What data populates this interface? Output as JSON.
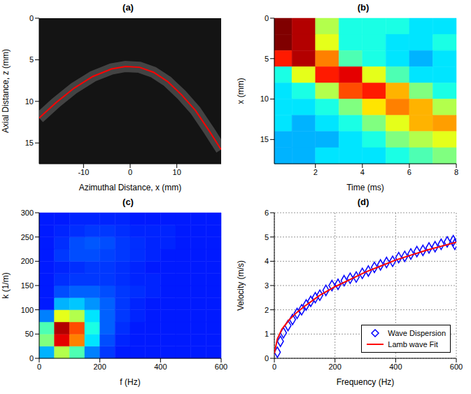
{
  "chart_data": [
    {
      "type": "line",
      "title": "(a)",
      "x_label": "Azimuthal Distance, x (mm)",
      "y_label": "Axial Distance, z (mm)",
      "x": [
        -19.5,
        -16,
        -12,
        -8,
        -4,
        -1,
        2,
        5,
        8,
        11,
        14,
        17,
        19.5
      ],
      "values": [
        12.0,
        10.2,
        8.4,
        7.0,
        6.1,
        5.8,
        5.9,
        6.5,
        7.6,
        9.2,
        11.1,
        13.6,
        15.8
      ],
      "color": "#ff0000",
      "xlim": [
        -19.5,
        19.5
      ],
      "xticks": [
        -10,
        0,
        10
      ],
      "ylim": [
        0,
        17.5
      ],
      "yticks": [
        0,
        5,
        10,
        15
      ]
    },
    {
      "type": "heatmap",
      "title": "(b)",
      "x_label": "Time (ms)",
      "y_label": "x (mm)",
      "x_edges": [
        0.25,
        1,
        2,
        3,
        4,
        5,
        6,
        7,
        8
      ],
      "y_edges": [
        0,
        2,
        4,
        6,
        8,
        10,
        12,
        14,
        16,
        18
      ],
      "cells": [
        [
          1.0,
          0.95,
          0.55,
          0.4,
          0.4,
          0.4,
          0.35,
          0.35
        ],
        [
          1.0,
          0.95,
          0.6,
          0.4,
          0.4,
          0.35,
          0.35,
          0.4
        ],
        [
          0.85,
          0.95,
          0.75,
          0.45,
          0.4,
          0.35,
          0.3,
          0.35
        ],
        [
          0.4,
          0.6,
          0.85,
          0.9,
          0.6,
          0.45,
          0.35,
          0.35
        ],
        [
          0.35,
          0.4,
          0.55,
          0.8,
          0.85,
          0.7,
          0.5,
          0.4
        ],
        [
          0.35,
          0.35,
          0.4,
          0.5,
          0.65,
          0.75,
          0.7,
          0.55
        ],
        [
          0.35,
          0.3,
          0.35,
          0.4,
          0.5,
          0.6,
          0.7,
          0.72
        ],
        [
          0.3,
          0.3,
          0.3,
          0.35,
          0.4,
          0.5,
          0.55,
          0.6
        ],
        [
          0.3,
          0.3,
          0.35,
          0.35,
          0.35,
          0.4,
          0.45,
          0.5
        ]
      ],
      "color_range": [
        0,
        1
      ],
      "xlim": [
        0.25,
        8
      ],
      "xticks": [
        2,
        4,
        6,
        8
      ],
      "ylim": [
        0,
        18
      ],
      "yticks": [
        0,
        5,
        10,
        15
      ]
    },
    {
      "type": "heatmap",
      "title": "(c)",
      "x_label": "f (Hz)",
      "y_label": "k (1/m)",
      "x_edges": [
        0,
        50,
        100,
        150,
        200,
        250,
        300,
        350,
        400,
        450,
        500,
        550,
        600
      ],
      "y_edges": [
        0,
        25,
        50,
        75,
        100,
        125,
        150,
        175,
        200,
        225,
        250,
        275,
        300
      ],
      "cells": [
        [
          0.3,
          0.55,
          0.45,
          0.25,
          0.18,
          0.15,
          0.15,
          0.15,
          0.15,
          0.15,
          0.15,
          0.15
        ],
        [
          0.5,
          0.9,
          0.75,
          0.35,
          0.2,
          0.16,
          0.15,
          0.15,
          0.15,
          0.15,
          0.15,
          0.15
        ],
        [
          0.45,
          0.95,
          0.8,
          0.4,
          0.22,
          0.17,
          0.15,
          0.15,
          0.15,
          0.15,
          0.15,
          0.15
        ],
        [
          0.25,
          0.6,
          0.55,
          0.35,
          0.22,
          0.18,
          0.16,
          0.15,
          0.15,
          0.15,
          0.15,
          0.15
        ],
        [
          0.15,
          0.3,
          0.32,
          0.27,
          0.22,
          0.18,
          0.16,
          0.15,
          0.15,
          0.15,
          0.15,
          0.15
        ],
        [
          0.15,
          0.2,
          0.22,
          0.22,
          0.2,
          0.18,
          0.17,
          0.16,
          0.15,
          0.15,
          0.15,
          0.15
        ],
        [
          0.15,
          0.17,
          0.18,
          0.18,
          0.18,
          0.17,
          0.16,
          0.16,
          0.15,
          0.15,
          0.15,
          0.15
        ],
        [
          0.15,
          0.16,
          0.17,
          0.18,
          0.18,
          0.17,
          0.16,
          0.15,
          0.15,
          0.15,
          0.15,
          0.15
        ],
        [
          0.15,
          0.18,
          0.2,
          0.2,
          0.19,
          0.18,
          0.17,
          0.16,
          0.15,
          0.15,
          0.15,
          0.15
        ],
        [
          0.15,
          0.17,
          0.2,
          0.21,
          0.2,
          0.18,
          0.17,
          0.16,
          0.16,
          0.15,
          0.15,
          0.15
        ],
        [
          0.15,
          0.16,
          0.17,
          0.18,
          0.18,
          0.17,
          0.16,
          0.16,
          0.16,
          0.15,
          0.15,
          0.15
        ],
        [
          0.15,
          0.15,
          0.16,
          0.16,
          0.16,
          0.16,
          0.15,
          0.15,
          0.15,
          0.15,
          0.15,
          0.15
        ]
      ],
      "color_range": [
        0,
        1
      ],
      "xlim": [
        0,
        600
      ],
      "xticks": [
        0,
        200,
        400,
        600
      ],
      "ylim": [
        0,
        300
      ],
      "yticks": [
        0,
        50,
        100,
        150,
        200,
        250,
        300
      ]
    },
    {
      "type": "scatter",
      "title": "(d)",
      "x_label": "Frequency (Hz)",
      "y_label": "Velocity (m/s)",
      "grid": true,
      "legend": "lower right",
      "series": [
        {
          "name": "Wave Dispersion",
          "type": "scatter",
          "marker": "diamond",
          "color": "#0000ff",
          "x": [
            10,
            20,
            30,
            45,
            60,
            75,
            90,
            105,
            120,
            135,
            150,
            170,
            190,
            210,
            230,
            250,
            270,
            290,
            310,
            330,
            350,
            370,
            390,
            410,
            430,
            450,
            470,
            490,
            510,
            530,
            550,
            570,
            590,
            595
          ],
          "values": [
            0.25,
            0.7,
            1.05,
            1.35,
            1.6,
            1.85,
            2.0,
            2.2,
            2.35,
            2.5,
            2.6,
            2.8,
            3.0,
            3.05,
            3.2,
            3.3,
            3.35,
            3.5,
            3.6,
            3.75,
            3.85,
            3.95,
            4.0,
            4.15,
            4.2,
            4.3,
            4.4,
            4.45,
            4.55,
            4.6,
            4.7,
            4.8,
            4.85,
            4.7
          ]
        },
        {
          "name": "Lamb wave Fit",
          "type": "line",
          "color": "#ff0000",
          "x": [
            0,
            10,
            25,
            50,
            75,
            100,
            150,
            200,
            250,
            300,
            350,
            400,
            450,
            500,
            550,
            600
          ],
          "values": [
            0.2,
            0.8,
            1.2,
            1.6,
            1.9,
            2.15,
            2.6,
            2.95,
            3.25,
            3.55,
            3.8,
            4.05,
            4.25,
            4.45,
            4.62,
            4.78
          ]
        }
      ],
      "xlim": [
        0,
        600
      ],
      "xticks": [
        0,
        200,
        400,
        600
      ],
      "ylim": [
        0,
        6
      ],
      "yticks": [
        0,
        1,
        2,
        3,
        4,
        5,
        6
      ]
    }
  ]
}
